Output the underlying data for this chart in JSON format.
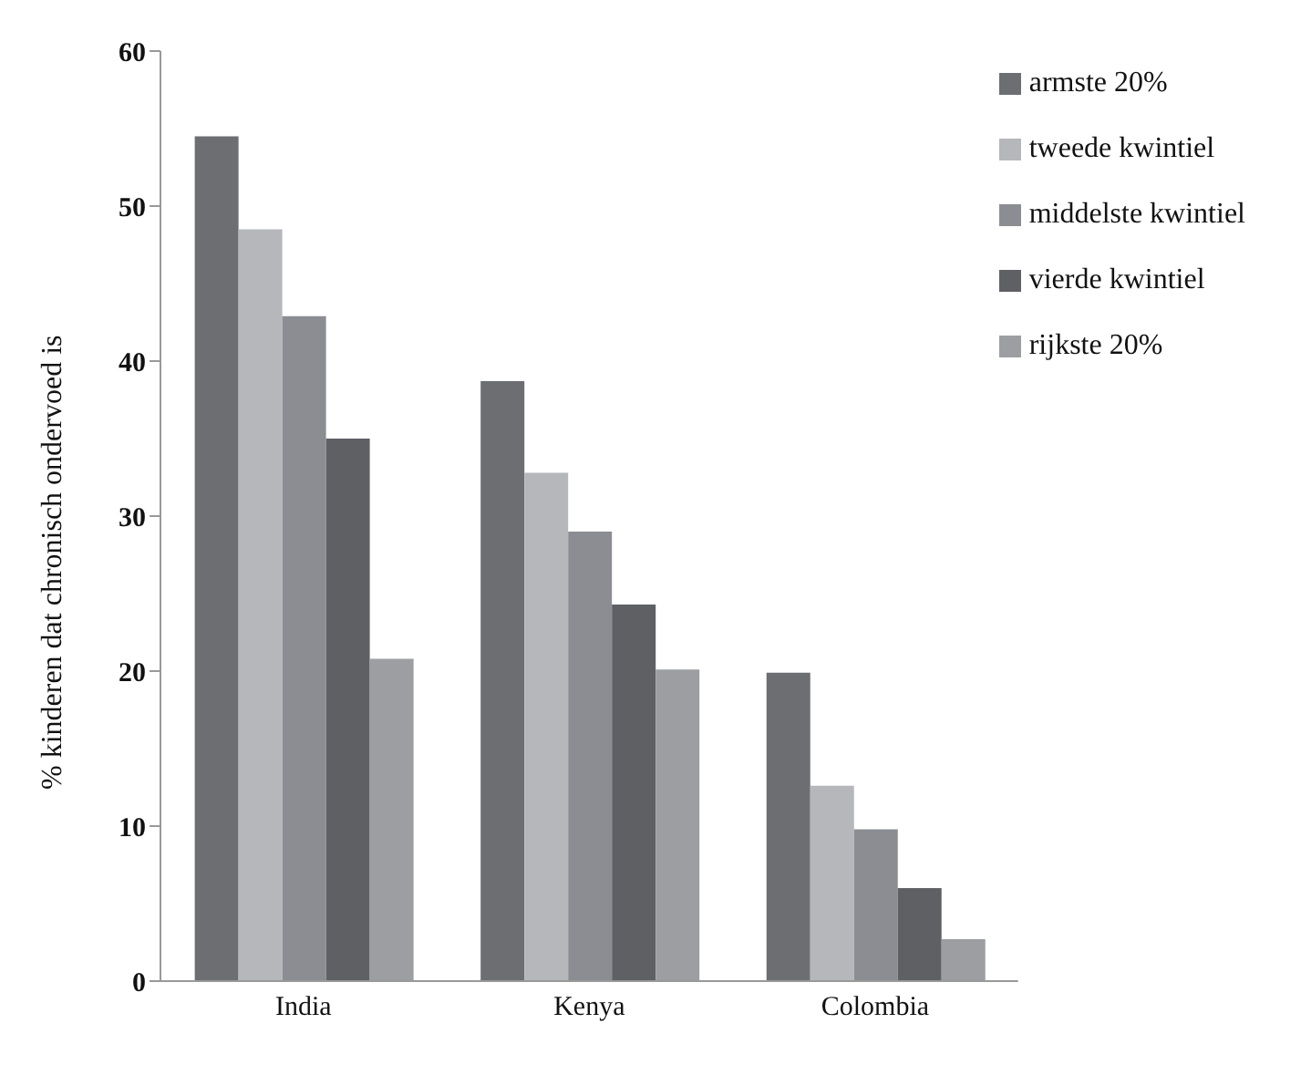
{
  "chart_data": {
    "type": "bar",
    "ylabel": "% kinderen dat chronisch ondervoed is",
    "categories": [
      "India",
      "Kenya",
      "Colombia"
    ],
    "series": [
      {
        "name": "armste 20%",
        "color": "#6d6e72",
        "values": [
          54.5,
          38.7,
          19.9
        ]
      },
      {
        "name": "tweede kwintiel",
        "color": "#b6b7ba",
        "values": [
          48.5,
          32.8,
          12.6
        ]
      },
      {
        "name": "middelste kwintiel",
        "color": "#8c8d92",
        "values": [
          42.9,
          29.0,
          9.8
        ]
      },
      {
        "name": "vierde kwintiel",
        "color": "#5f6064",
        "values": [
          35.0,
          24.3,
          6.0
        ]
      },
      {
        "name": "rijkste 20%",
        "color": "#9c9ea2",
        "values": [
          20.8,
          20.1,
          2.7
        ]
      }
    ],
    "ylim": [
      0,
      60
    ],
    "yticks": [
      0,
      10,
      20,
      30,
      40,
      50,
      60
    ],
    "grid": false,
    "legend": "top right"
  }
}
